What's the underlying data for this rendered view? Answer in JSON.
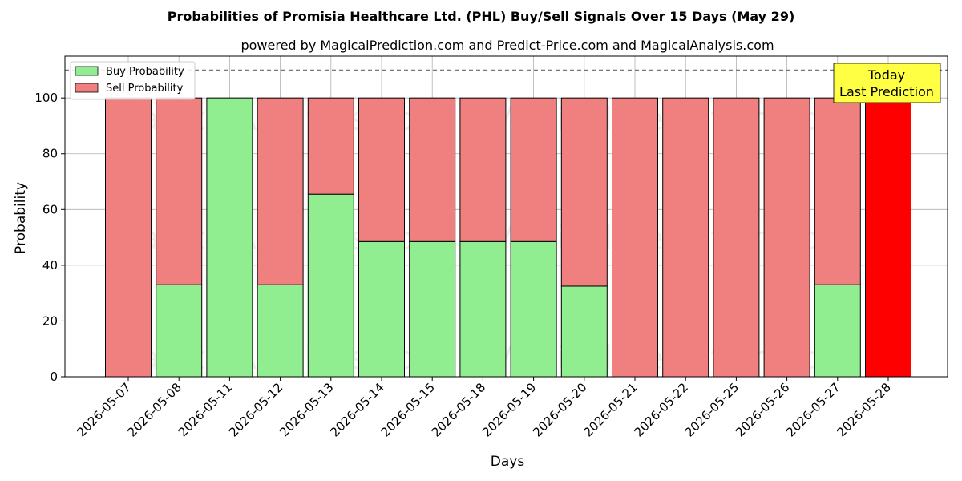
{
  "chart_data": {
    "type": "bar",
    "stacked": true,
    "title": "Probabilities of Promisia Healthcare Ltd. (PHL) Buy/Sell Signals Over 15 Days (May 29)",
    "subtitle": "powered by MagicalPrediction.com and Predict-Price.com and MagicalAnalysis.com",
    "xlabel": "Days",
    "ylabel": "Probability",
    "ylim": [
      0,
      115
    ],
    "yticks": [
      0,
      20,
      40,
      60,
      80,
      100
    ],
    "grid": true,
    "legend_placement": "top-left",
    "reference_line": {
      "y": 110,
      "style": "dashed"
    },
    "categories": [
      "2026-05-07",
      "2026-05-08",
      "2026-05-11",
      "2026-05-12",
      "2026-05-13",
      "2026-05-14",
      "2026-05-15",
      "2026-05-18",
      "2026-05-19",
      "2026-05-20",
      "2026-05-21",
      "2026-05-22",
      "2026-05-25",
      "2026-05-26",
      "2026-05-27",
      "2026-05-28"
    ],
    "series": [
      {
        "name": "Buy Probability",
        "color": "#90EE90",
        "values": [
          0,
          33,
          100,
          33,
          65.5,
          48.5,
          48.5,
          48.5,
          48.5,
          32.5,
          0,
          0,
          0,
          0,
          33,
          0
        ]
      },
      {
        "name": "Sell Probability",
        "color": "#F08080",
        "values": [
          100,
          67,
          0,
          67,
          34.5,
          51.5,
          51.5,
          51.5,
          51.5,
          67.5,
          100,
          100,
          100,
          100,
          67,
          100
        ]
      }
    ],
    "highlight": {
      "category": "2026-05-28",
      "color": "#FF0000"
    },
    "annotation": {
      "lines": [
        "Today",
        "Last Prediction"
      ],
      "background": "#FFFF44"
    },
    "watermarks": [
      "MagicalAnalysis.com",
      "MagicalPrediction.com"
    ]
  }
}
